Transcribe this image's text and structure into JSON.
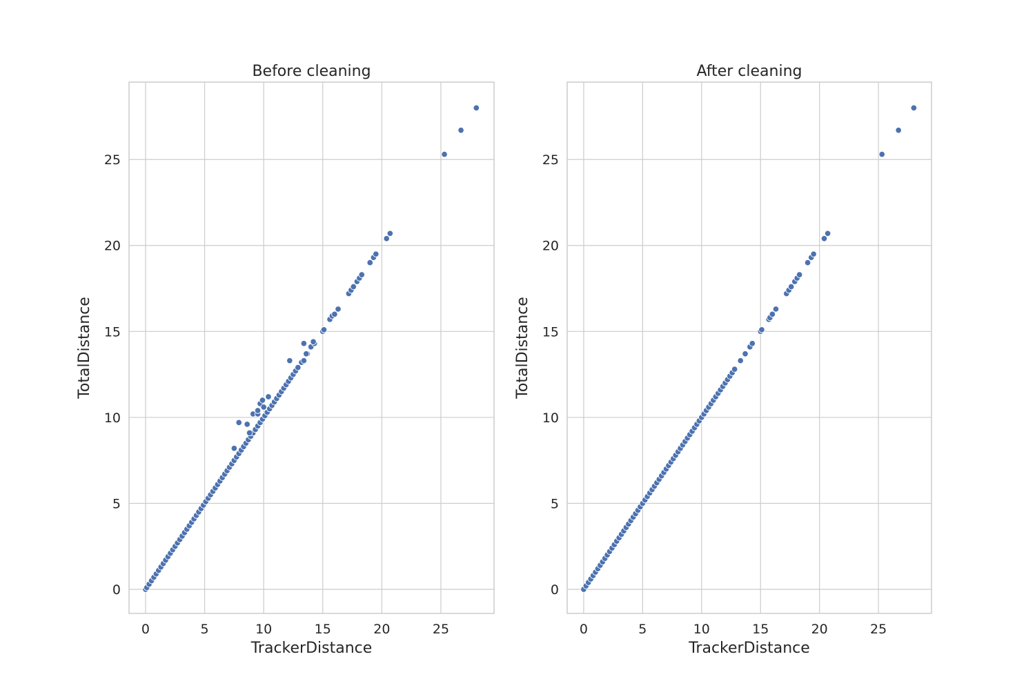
{
  "chart_data": [
    {
      "type": "scatter",
      "title": "Before cleaning",
      "xlabel": "TrackerDistance",
      "ylabel": "TotalDistance",
      "xlim": [
        -1.4,
        29.5
      ],
      "ylim": [
        -1.4,
        29.5
      ],
      "xticks": [
        "0",
        "5",
        "10",
        "15",
        "20",
        "25"
      ],
      "yticks": [
        "0",
        "5",
        "10",
        "15",
        "20",
        "25"
      ],
      "grid": true,
      "color": "#4c72b0",
      "points": [
        [
          0,
          0
        ],
        [
          0.1,
          0.1
        ],
        [
          0.3,
          0.3
        ],
        [
          0.5,
          0.5
        ],
        [
          0.7,
          0.7
        ],
        [
          0.9,
          0.9
        ],
        [
          1.1,
          1.1
        ],
        [
          1.3,
          1.3
        ],
        [
          1.5,
          1.5
        ],
        [
          1.7,
          1.7
        ],
        [
          1.9,
          1.9
        ],
        [
          2.1,
          2.1
        ],
        [
          2.3,
          2.3
        ],
        [
          2.5,
          2.5
        ],
        [
          2.7,
          2.7
        ],
        [
          2.9,
          2.9
        ],
        [
          3.1,
          3.1
        ],
        [
          3.3,
          3.3
        ],
        [
          3.5,
          3.5
        ],
        [
          3.7,
          3.7
        ],
        [
          3.9,
          3.9
        ],
        [
          4.1,
          4.1
        ],
        [
          4.3,
          4.3
        ],
        [
          4.5,
          4.5
        ],
        [
          4.7,
          4.7
        ],
        [
          4.9,
          4.9
        ],
        [
          5.1,
          5.1
        ],
        [
          5.3,
          5.3
        ],
        [
          5.5,
          5.5
        ],
        [
          5.7,
          5.7
        ],
        [
          5.9,
          5.9
        ],
        [
          6.1,
          6.1
        ],
        [
          6.3,
          6.3
        ],
        [
          6.5,
          6.5
        ],
        [
          6.7,
          6.7
        ],
        [
          6.9,
          6.9
        ],
        [
          7.1,
          7.1
        ],
        [
          7.3,
          7.3
        ],
        [
          7.5,
          7.5
        ],
        [
          7.7,
          7.7
        ],
        [
          7.9,
          7.9
        ],
        [
          8.1,
          8.1
        ],
        [
          8.3,
          8.3
        ],
        [
          8.5,
          8.5
        ],
        [
          8.7,
          8.7
        ],
        [
          8.9,
          8.9
        ],
        [
          9.1,
          9.1
        ],
        [
          9.3,
          9.3
        ],
        [
          9.5,
          9.5
        ],
        [
          9.7,
          9.7
        ],
        [
          9.9,
          9.9
        ],
        [
          10.1,
          10.1
        ],
        [
          10.3,
          10.3
        ],
        [
          10.5,
          10.5
        ],
        [
          10.7,
          10.7
        ],
        [
          10.9,
          10.9
        ],
        [
          11.1,
          11.1
        ],
        [
          11.3,
          11.3
        ],
        [
          11.5,
          11.5
        ],
        [
          11.7,
          11.7
        ],
        [
          11.9,
          11.9
        ],
        [
          12.1,
          12.1
        ],
        [
          12.3,
          12.3
        ],
        [
          12.5,
          12.5
        ],
        [
          12.7,
          12.7
        ],
        [
          12.9,
          12.9
        ],
        [
          13.2,
          13.2
        ],
        [
          13.4,
          13.3
        ],
        [
          13.7,
          13.7
        ],
        [
          14.0,
          14.1
        ],
        [
          14.3,
          14.3
        ],
        [
          15.0,
          15.0
        ],
        [
          15.1,
          15.1
        ],
        [
          15.6,
          15.7
        ],
        [
          15.8,
          15.9
        ],
        [
          16.0,
          16.0
        ],
        [
          16.3,
          16.3
        ],
        [
          17.2,
          17.2
        ],
        [
          17.4,
          17.4
        ],
        [
          17.6,
          17.6
        ],
        [
          17.9,
          17.9
        ],
        [
          18.1,
          18.1
        ],
        [
          18.3,
          18.3
        ],
        [
          19.0,
          19.0
        ],
        [
          19.3,
          19.3
        ],
        [
          19.5,
          19.5
        ],
        [
          20.4,
          20.4
        ],
        [
          20.7,
          20.7
        ],
        [
          25.3,
          25.3
        ],
        [
          26.7,
          26.7
        ],
        [
          28.0,
          28.0
        ],
        [
          7.5,
          8.2
        ],
        [
          7.9,
          9.7
        ],
        [
          8.6,
          9.6
        ],
        [
          8.8,
          9.1
        ],
        [
          9.1,
          10.2
        ],
        [
          9.5,
          10.2
        ],
        [
          9.5,
          10.4
        ],
        [
          9.7,
          10.8
        ],
        [
          9.9,
          11.0
        ],
        [
          10.0,
          10.6
        ],
        [
          10.4,
          11.2
        ],
        [
          12.2,
          13.3
        ],
        [
          13.4,
          14.3
        ],
        [
          13.6,
          13.7
        ],
        [
          14.2,
          14.4
        ]
      ]
    },
    {
      "type": "scatter",
      "title": "After cleaning",
      "xlabel": "TrackerDistance",
      "ylabel": "TotalDistance",
      "xlim": [
        -1.4,
        29.5
      ],
      "ylim": [
        -1.4,
        29.5
      ],
      "xticks": [
        "0",
        "5",
        "10",
        "15",
        "20",
        "25"
      ],
      "yticks": [
        "0",
        "5",
        "10",
        "15",
        "20",
        "25"
      ],
      "grid": true,
      "color": "#4c72b0",
      "points": [
        [
          0,
          0
        ],
        [
          0.2,
          0.2
        ],
        [
          0.4,
          0.4
        ],
        [
          0.6,
          0.6
        ],
        [
          0.8,
          0.8
        ],
        [
          1.0,
          1.0
        ],
        [
          1.2,
          1.2
        ],
        [
          1.4,
          1.4
        ],
        [
          1.6,
          1.6
        ],
        [
          1.8,
          1.8
        ],
        [
          2.0,
          2.0
        ],
        [
          2.2,
          2.2
        ],
        [
          2.4,
          2.4
        ],
        [
          2.6,
          2.6
        ],
        [
          2.8,
          2.8
        ],
        [
          3.0,
          3.0
        ],
        [
          3.2,
          3.2
        ],
        [
          3.4,
          3.4
        ],
        [
          3.6,
          3.6
        ],
        [
          3.8,
          3.8
        ],
        [
          4.0,
          4.0
        ],
        [
          4.2,
          4.2
        ],
        [
          4.4,
          4.4
        ],
        [
          4.6,
          4.6
        ],
        [
          4.8,
          4.8
        ],
        [
          5.0,
          5.0
        ],
        [
          5.2,
          5.2
        ],
        [
          5.4,
          5.4
        ],
        [
          5.6,
          5.6
        ],
        [
          5.8,
          5.8
        ],
        [
          6.0,
          6.0
        ],
        [
          6.2,
          6.2
        ],
        [
          6.4,
          6.4
        ],
        [
          6.6,
          6.6
        ],
        [
          6.8,
          6.8
        ],
        [
          7.0,
          7.0
        ],
        [
          7.2,
          7.2
        ],
        [
          7.4,
          7.4
        ],
        [
          7.6,
          7.6
        ],
        [
          7.8,
          7.8
        ],
        [
          8.0,
          8.0
        ],
        [
          8.2,
          8.2
        ],
        [
          8.4,
          8.4
        ],
        [
          8.6,
          8.6
        ],
        [
          8.8,
          8.8
        ],
        [
          9.0,
          9.0
        ],
        [
          9.2,
          9.2
        ],
        [
          9.4,
          9.4
        ],
        [
          9.6,
          9.6
        ],
        [
          9.8,
          9.8
        ],
        [
          10.0,
          10.0
        ],
        [
          10.2,
          10.2
        ],
        [
          10.4,
          10.4
        ],
        [
          10.6,
          10.6
        ],
        [
          10.8,
          10.8
        ],
        [
          11.0,
          11.0
        ],
        [
          11.2,
          11.2
        ],
        [
          11.4,
          11.4
        ],
        [
          11.6,
          11.6
        ],
        [
          11.8,
          11.8
        ],
        [
          12.0,
          12.0
        ],
        [
          12.2,
          12.2
        ],
        [
          12.4,
          12.4
        ],
        [
          12.6,
          12.6
        ],
        [
          12.8,
          12.8
        ],
        [
          13.3,
          13.3
        ],
        [
          13.7,
          13.7
        ],
        [
          14.1,
          14.1
        ],
        [
          14.3,
          14.3
        ],
        [
          15.0,
          15.0
        ],
        [
          15.1,
          15.1
        ],
        [
          15.7,
          15.7
        ],
        [
          15.8,
          15.8
        ],
        [
          16.0,
          16.0
        ],
        [
          16.3,
          16.3
        ],
        [
          17.2,
          17.2
        ],
        [
          17.4,
          17.4
        ],
        [
          17.6,
          17.6
        ],
        [
          17.9,
          17.9
        ],
        [
          18.1,
          18.1
        ],
        [
          18.3,
          18.3
        ],
        [
          19.0,
          19.0
        ],
        [
          19.3,
          19.3
        ],
        [
          19.5,
          19.5
        ],
        [
          20.4,
          20.4
        ],
        [
          20.7,
          20.7
        ],
        [
          25.3,
          25.3
        ],
        [
          26.7,
          26.7
        ],
        [
          28.0,
          28.0
        ]
      ]
    }
  ]
}
